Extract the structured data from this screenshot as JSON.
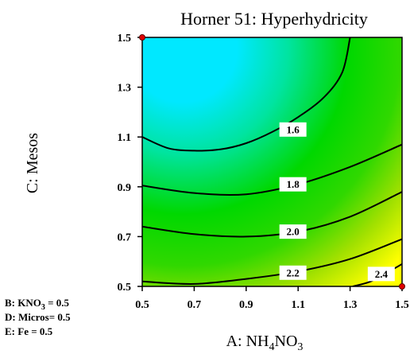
{
  "chart_data": {
    "type": "contour",
    "title": "Horner 51: Hyperhydricity",
    "xlabel": {
      "prefix": "A: NH",
      "sub1": "4",
      "mid": "NO",
      "sub2": "3"
    },
    "ylabel": "C: Mesos",
    "xlim": [
      0.5,
      1.5
    ],
    "ylim": [
      0.5,
      1.5
    ],
    "x_ticks": [
      "0.5",
      "0.7",
      "0.9",
      "1.1",
      "1.3",
      "1.5"
    ],
    "y_ticks": [
      "0.5",
      "0.7",
      "0.9",
      "1.1",
      "1.3",
      "1.5"
    ],
    "contours": [
      {
        "level": "1.6",
        "label_at": [
          1.08,
          1.13
        ],
        "points": [
          [
            0.5,
            1.1
          ],
          [
            0.6,
            1.055
          ],
          [
            0.7,
            1.045
          ],
          [
            0.8,
            1.05
          ],
          [
            0.9,
            1.075
          ],
          [
            1.0,
            1.12
          ],
          [
            1.1,
            1.18
          ],
          [
            1.2,
            1.26
          ],
          [
            1.27,
            1.36
          ],
          [
            1.3,
            1.5
          ]
        ]
      },
      {
        "level": "1.8",
        "label_at": [
          1.08,
          0.91
        ],
        "points": [
          [
            0.5,
            0.905
          ],
          [
            0.7,
            0.875
          ],
          [
            0.9,
            0.87
          ],
          [
            1.1,
            0.91
          ],
          [
            1.3,
            0.98
          ],
          [
            1.5,
            1.07
          ]
        ]
      },
      {
        "level": "2.0",
        "label_at": [
          1.08,
          0.72
        ],
        "points": [
          [
            0.5,
            0.74
          ],
          [
            0.7,
            0.71
          ],
          [
            0.9,
            0.7
          ],
          [
            1.1,
            0.72
          ],
          [
            1.3,
            0.78
          ],
          [
            1.5,
            0.88
          ]
        ]
      },
      {
        "level": "2.2",
        "label_at": [
          1.08,
          0.555
        ],
        "points": [
          [
            0.5,
            0.52
          ],
          [
            0.7,
            0.51
          ],
          [
            0.9,
            0.53
          ],
          [
            1.1,
            0.56
          ],
          [
            1.3,
            0.61
          ],
          [
            1.5,
            0.69
          ]
        ]
      },
      {
        "level": "2.4",
        "label_at": [
          1.42,
          0.55
        ],
        "points": [
          [
            1.31,
            0.5
          ],
          [
            1.38,
            0.52
          ],
          [
            1.45,
            0.56
          ],
          [
            1.5,
            0.59
          ]
        ]
      }
    ],
    "design_points": [
      [
        0.5,
        1.5
      ],
      [
        1.5,
        0.5
      ]
    ],
    "fixed_factors": [
      {
        "prefix": "B: KNO",
        "sub": "3",
        "suffix": " = 0.5"
      },
      {
        "prefix": "D: Micros= 0.5",
        "sub": "",
        "suffix": ""
      },
      {
        "prefix": "E: Fe = 0.5",
        "sub": "",
        "suffix": ""
      }
    ],
    "colors": {
      "high": "#00e5ff",
      "mid": "#00d000",
      "low": "#ffff00"
    },
    "grid": false
  }
}
